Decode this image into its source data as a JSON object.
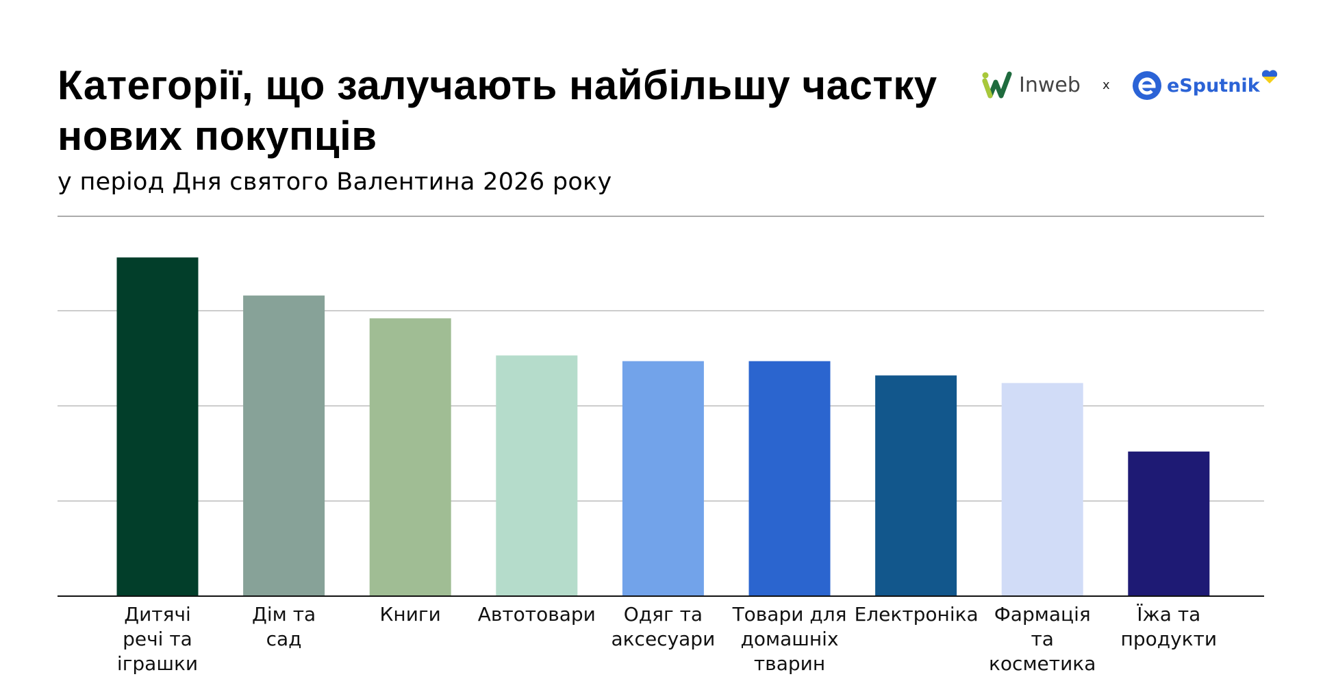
{
  "header": {
    "title": "Категорії, що залучають найбільшу частку нових покупців",
    "subtitle": "у період Дня святого Валентина 2026 року"
  },
  "logos": {
    "inweb": "Inweb",
    "separator": "x",
    "esputnik": "eSputnik"
  },
  "chart_data": {
    "type": "bar",
    "title": "Категорії, що залучають найбільшу частку нових покупців",
    "subtitle": "у період Дня святого Валентина 2026 року",
    "categories": [
      "Дитячі речі та іграшки",
      "Дім та сад",
      "Книги",
      "Автотовари",
      "Одяг та аксесуари",
      "Товари для домашніх тварин",
      "Електроніка",
      "Фармація та косметика",
      "Їжа та продукти"
    ],
    "category_lines": [
      [
        "Дитячі",
        "речі та",
        "іграшки"
      ],
      [
        "Дім та",
        "сад"
      ],
      [
        "Книги"
      ],
      [
        "Автотовари"
      ],
      [
        "Одяг та",
        "аксесуари"
      ],
      [
        "Товари для",
        "домашніх",
        "тварин"
      ],
      [
        "Електроніка"
      ],
      [
        "Фармація",
        "та",
        "косметика"
      ],
      [
        "Їжа та",
        "продукти"
      ]
    ],
    "values": [
      3.56,
      3.16,
      2.92,
      2.53,
      2.47,
      2.47,
      2.32,
      2.24,
      1.52
    ],
    "colors": [
      "#023e2a",
      "#87a298",
      "#a0bd94",
      "#b5dccb",
      "#72a3ea",
      "#2b65cf",
      "#12578c",
      "#d1dcf7",
      "#1e1a74"
    ],
    "ylim": [
      0,
      4
    ],
    "gridlines": [
      1,
      2,
      3
    ],
    "grid": true,
    "y_tick_labels_shown": false,
    "xlabel": "",
    "ylabel": ""
  }
}
